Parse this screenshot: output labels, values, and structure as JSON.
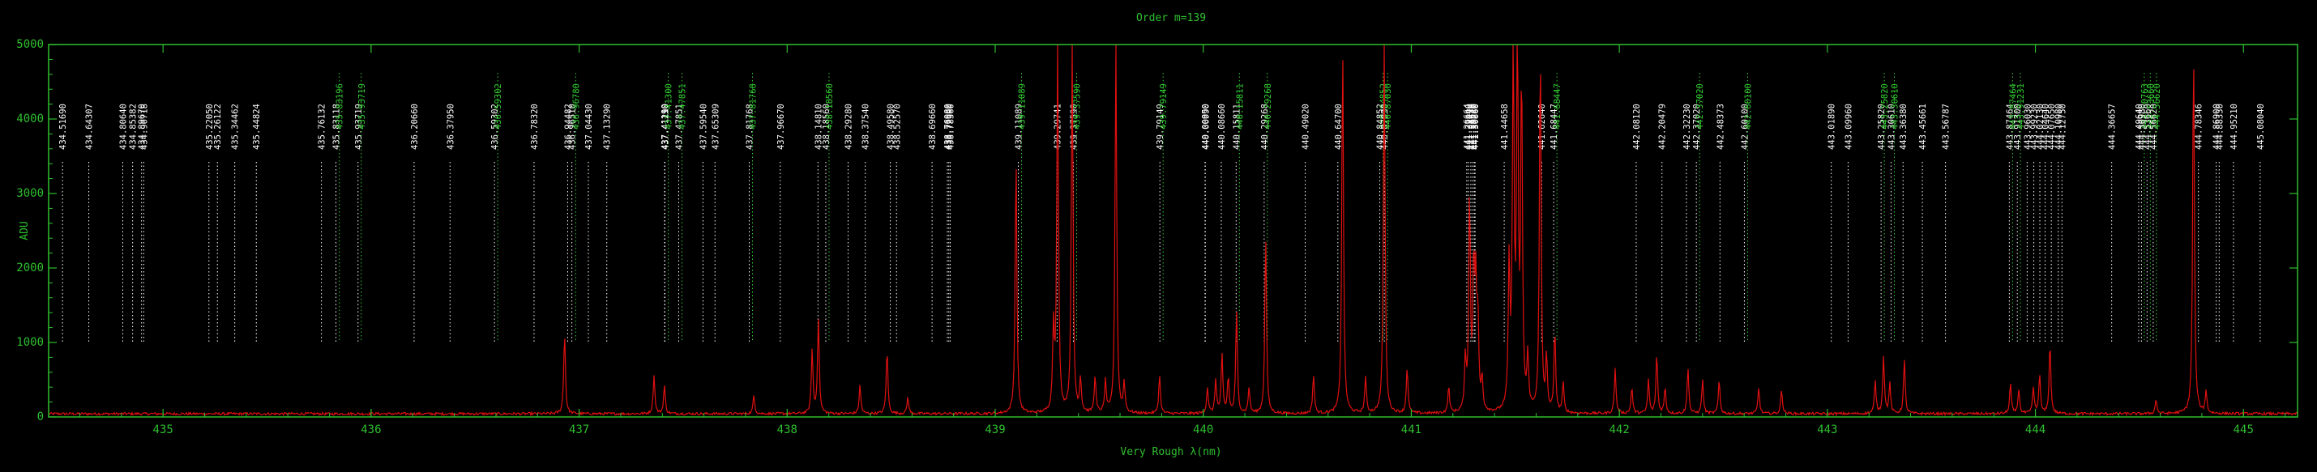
{
  "chart_data": {
    "type": "line",
    "title": "Order m=139",
    "xlabel": "Very Rough λ(nm)",
    "ylabel": "ADU",
    "xlim": [
      434.45,
      445.26
    ],
    "ylim": [
      0,
      5000
    ],
    "x_ticks": [
      435,
      436,
      437,
      438,
      439,
      440,
      441,
      442,
      443,
      444,
      445
    ],
    "y_ticks": [
      0,
      1000,
      2000,
      3000,
      4000,
      5000
    ],
    "grid": false,
    "colors": {
      "background": "#000000",
      "axes": "#2fbf2f",
      "spectrum": "#e01010",
      "line_white": "#ffffff",
      "line_green": "#33cc33"
    },
    "series": [
      {
        "color": "#e01010",
        "baseline": 25,
        "peaks": [
          [
            436.93,
            1100
          ],
          [
            437.36,
            520
          ],
          [
            437.41,
            380
          ],
          [
            437.84,
            250
          ],
          [
            438.12,
            850
          ],
          [
            438.15,
            1290
          ],
          [
            438.35,
            380
          ],
          [
            438.48,
            870
          ],
          [
            438.58,
            220
          ],
          [
            439.1,
            3480
          ],
          [
            439.28,
            1100
          ],
          [
            439.3,
            5000
          ],
          [
            439.37,
            5000
          ],
          [
            439.41,
            450
          ],
          [
            439.48,
            500
          ],
          [
            439.53,
            420
          ],
          [
            439.58,
            5000
          ],
          [
            439.62,
            400
          ],
          [
            439.79,
            520
          ],
          [
            440.02,
            350
          ],
          [
            440.06,
            450
          ],
          [
            440.09,
            780
          ],
          [
            440.12,
            480
          ],
          [
            440.16,
            1380
          ],
          [
            440.22,
            350
          ],
          [
            440.3,
            2420
          ],
          [
            440.53,
            520
          ],
          [
            440.67,
            5000
          ],
          [
            440.78,
            480
          ],
          [
            440.87,
            5000
          ],
          [
            440.98,
            620
          ],
          [
            441.18,
            350
          ],
          [
            441.26,
            680
          ],
          [
            441.28,
            2880
          ],
          [
            441.3,
            1900
          ],
          [
            441.31,
            1500
          ],
          [
            441.32,
            1200
          ],
          [
            441.34,
            420
          ],
          [
            441.47,
            1900
          ],
          [
            441.49,
            5000
          ],
          [
            441.51,
            5000
          ],
          [
            441.53,
            4500
          ],
          [
            441.56,
            700
          ],
          [
            441.62,
            5000
          ],
          [
            441.65,
            700
          ],
          [
            441.69,
            1100
          ],
          [
            441.73,
            400
          ],
          [
            441.98,
            600
          ],
          [
            442.06,
            350
          ],
          [
            442.14,
            450
          ],
          [
            442.18,
            800
          ],
          [
            442.22,
            350
          ],
          [
            442.33,
            620
          ],
          [
            442.4,
            450
          ],
          [
            442.48,
            450
          ],
          [
            442.67,
            350
          ],
          [
            442.78,
            330
          ],
          [
            443.23,
            430
          ],
          [
            443.27,
            780
          ],
          [
            443.3,
            400
          ],
          [
            443.37,
            720
          ],
          [
            443.88,
            400
          ],
          [
            443.92,
            330
          ],
          [
            443.99,
            350
          ],
          [
            444.02,
            520
          ],
          [
            444.07,
            950
          ],
          [
            444.58,
            200
          ],
          [
            444.76,
            5000
          ],
          [
            444.82,
            300
          ]
        ]
      }
    ],
    "line_ids": [
      {
        "x": 434.5169,
        "label": "434.51690",
        "color": "white"
      },
      {
        "x": 434.6431,
        "label": "434.64307",
        "color": "white"
      },
      {
        "x": 434.8064,
        "label": "434.80640",
        "color": "white"
      },
      {
        "x": 434.8538,
        "label": "434.85382",
        "color": "white"
      },
      {
        "x": 434.8967,
        "label": "434.89670",
        "color": "white"
      },
      {
        "x": 434.9072,
        "label": "434.90718",
        "color": "white"
      },
      {
        "x": 435.2205,
        "label": "435.22050",
        "color": "white"
      },
      {
        "x": 435.2612,
        "label": "435.26122",
        "color": "white"
      },
      {
        "x": 435.3446,
        "label": "435.34462",
        "color": "white"
      },
      {
        "x": 435.4482,
        "label": "435.44824",
        "color": "white"
      },
      {
        "x": 435.7613,
        "label": "435.76132",
        "color": "white"
      },
      {
        "x": 435.8311,
        "label": "435.83118",
        "color": "white"
      },
      {
        "x": 435.8319,
        "label": "435.83196",
        "color": "green"
      },
      {
        "x": 435.9372,
        "label": "435.93719",
        "color": "white"
      },
      {
        "x": 435.9372,
        "label": "435.93719",
        "color": "green"
      },
      {
        "x": 436.2066,
        "label": "436.20660",
        "color": "white"
      },
      {
        "x": 436.3795,
        "label": "436.37950",
        "color": "white"
      },
      {
        "x": 436.593,
        "label": "436.59302",
        "color": "white"
      },
      {
        "x": 436.593,
        "label": "436.59302",
        "color": "green"
      },
      {
        "x": 436.7832,
        "label": "436.78320",
        "color": "white"
      },
      {
        "x": 436.9448,
        "label": "436.94482",
        "color": "white"
      },
      {
        "x": 436.9651,
        "label": "436.96510",
        "color": "white"
      },
      {
        "x": 436.9678,
        "label": "436.96780",
        "color": "green"
      },
      {
        "x": 437.0443,
        "label": "437.04430",
        "color": "white"
      },
      {
        "x": 437.1329,
        "label": "437.13290",
        "color": "white"
      },
      {
        "x": 437.4111,
        "label": "437.41110",
        "color": "white"
      },
      {
        "x": 437.4119,
        "label": "437.41190",
        "color": "white"
      },
      {
        "x": 437.4125,
        "label": "437.41250",
        "color": "white"
      },
      {
        "x": 437.413,
        "label": "437.41300",
        "color": "green"
      },
      {
        "x": 437.4785,
        "label": "437.47851",
        "color": "white"
      },
      {
        "x": 437.4785,
        "label": "437.47851",
        "color": "green"
      },
      {
        "x": 437.5954,
        "label": "437.59540",
        "color": "white"
      },
      {
        "x": 437.6531,
        "label": "437.65309",
        "color": "white"
      },
      {
        "x": 437.8177,
        "label": "437.81768",
        "color": "white"
      },
      {
        "x": 437.8177,
        "label": "437.81768",
        "color": "green"
      },
      {
        "x": 437.9667,
        "label": "437.96670",
        "color": "white"
      },
      {
        "x": 438.1481,
        "label": "438.14810",
        "color": "white"
      },
      {
        "x": 438.1856,
        "label": "438.18560",
        "color": "white"
      },
      {
        "x": 438.1856,
        "label": "438.18560",
        "color": "green"
      },
      {
        "x": 438.2928,
        "label": "438.29280",
        "color": "white"
      },
      {
        "x": 438.3754,
        "label": "438.37540",
        "color": "white"
      },
      {
        "x": 438.4958,
        "label": "438.49580",
        "color": "white"
      },
      {
        "x": 438.5257,
        "label": "438.52570",
        "color": "white"
      },
      {
        "x": 438.6966,
        "label": "438.69660",
        "color": "white"
      },
      {
        "x": 438.7698,
        "label": "438.76980",
        "color": "white"
      },
      {
        "x": 438.7769,
        "label": "438.77690",
        "color": "white"
      },
      {
        "x": 438.7836,
        "label": "438.78360",
        "color": "white"
      },
      {
        "x": 439.1109,
        "label": "439.11089",
        "color": "white"
      },
      {
        "x": 439.1109,
        "label": "439.11089",
        "color": "green"
      },
      {
        "x": 439.2974,
        "label": "439.29741",
        "color": "white"
      },
      {
        "x": 439.3759,
        "label": "439.37590",
        "color": "white"
      },
      {
        "x": 439.3759,
        "label": "439.37590",
        "color": "green"
      },
      {
        "x": 439.7915,
        "label": "439.79149",
        "color": "white"
      },
      {
        "x": 439.7915,
        "label": "439.79149",
        "color": "green"
      },
      {
        "x": 440.0085,
        "label": "440.00850",
        "color": "white"
      },
      {
        "x": 440.0099,
        "label": "440.00990",
        "color": "white"
      },
      {
        "x": 440.0866,
        "label": "440.08660",
        "color": "white"
      },
      {
        "x": 440.1581,
        "label": "440.15811",
        "color": "white"
      },
      {
        "x": 440.1581,
        "label": "440.15811",
        "color": "green"
      },
      {
        "x": 440.2927,
        "label": "440.29268",
        "color": "white"
      },
      {
        "x": 440.2927,
        "label": "440.29268",
        "color": "green"
      },
      {
        "x": 440.4902,
        "label": "440.49020",
        "color": "white"
      },
      {
        "x": 440.647,
        "label": "440.64700",
        "color": "white"
      },
      {
        "x": 440.8485,
        "label": "440.84852",
        "color": "white"
      },
      {
        "x": 440.8485,
        "label": "440.84852",
        "color": "green"
      },
      {
        "x": 440.8703,
        "label": "440.87030",
        "color": "white"
      },
      {
        "x": 440.8703,
        "label": "440.87030",
        "color": "green"
      },
      {
        "x": 441.2666,
        "label": "441.26664",
        "color": "white"
      },
      {
        "x": 441.2744,
        "label": "441.27440",
        "color": "white"
      },
      {
        "x": 441.2863,
        "label": "441.28630",
        "color": "white"
      },
      {
        "x": 441.2952,
        "label": "441.29520",
        "color": "white"
      },
      {
        "x": 441.3028,
        "label": "441.30280",
        "color": "white"
      },
      {
        "x": 441.3066,
        "label": "441.30660",
        "color": "white"
      },
      {
        "x": 441.4466,
        "label": "441.44658",
        "color": "white"
      },
      {
        "x": 441.6264,
        "label": "441.62640",
        "color": "white"
      },
      {
        "x": 441.6845,
        "label": "441.68447",
        "color": "white"
      },
      {
        "x": 441.6845,
        "label": "441.68447",
        "color": "green"
      },
      {
        "x": 442.0812,
        "label": "442.08120",
        "color": "white"
      },
      {
        "x": 442.2048,
        "label": "442.20479",
        "color": "white"
      },
      {
        "x": 442.3223,
        "label": "442.32230",
        "color": "white"
      },
      {
        "x": 442.3702,
        "label": "442.37020",
        "color": "white"
      },
      {
        "x": 442.3702,
        "label": "442.37020",
        "color": "green"
      },
      {
        "x": 442.4837,
        "label": "442.48373",
        "color": "white"
      },
      {
        "x": 442.601,
        "label": "442.60100",
        "color": "white"
      },
      {
        "x": 442.601,
        "label": "442.60100",
        "color": "green"
      },
      {
        "x": 443.0189,
        "label": "443.01890",
        "color": "white"
      },
      {
        "x": 443.0996,
        "label": "443.09960",
        "color": "white"
      },
      {
        "x": 443.2582,
        "label": "443.25820",
        "color": "white"
      },
      {
        "x": 443.2582,
        "label": "443.25820",
        "color": "green"
      },
      {
        "x": 443.3061,
        "label": "443.30610",
        "color": "white"
      },
      {
        "x": 443.3061,
        "label": "443.30610",
        "color": "green"
      },
      {
        "x": 443.3638,
        "label": "443.36380",
        "color": "white"
      },
      {
        "x": 443.4566,
        "label": "443.45661",
        "color": "white"
      },
      {
        "x": 443.5679,
        "label": "443.56787",
        "color": "white"
      },
      {
        "x": 443.8746,
        "label": "443.87464",
        "color": "white"
      },
      {
        "x": 443.8746,
        "label": "443.87464",
        "color": "green"
      },
      {
        "x": 443.913,
        "label": "443.91300",
        "color": "white"
      },
      {
        "x": 443.9123,
        "label": "443.91231",
        "color": "green"
      },
      {
        "x": 443.9603,
        "label": "443.96030",
        "color": "white"
      },
      {
        "x": 443.9923,
        "label": "443.99230",
        "color": "white"
      },
      {
        "x": 444.0213,
        "label": "444.02130",
        "color": "white"
      },
      {
        "x": 444.0464,
        "label": "444.04640",
        "color": "white"
      },
      {
        "x": 444.0765,
        "label": "444.07650",
        "color": "white"
      },
      {
        "x": 444.1098,
        "label": "444.10980",
        "color": "white"
      },
      {
        "x": 444.1275,
        "label": "444.12750",
        "color": "white"
      },
      {
        "x": 444.3666,
        "label": "444.36657",
        "color": "white"
      },
      {
        "x": 444.4964,
        "label": "444.49640",
        "color": "white"
      },
      {
        "x": 444.5076,
        "label": "444.50763",
        "color": "green"
      },
      {
        "x": 444.5098,
        "label": "444.50980",
        "color": "white"
      },
      {
        "x": 444.5366,
        "label": "444.53660",
        "color": "white"
      },
      {
        "x": 444.5366,
        "label": "444.53660",
        "color": "green"
      },
      {
        "x": 444.5662,
        "label": "444.56620",
        "color": "white"
      },
      {
        "x": 444.5662,
        "label": "444.56620",
        "color": "green"
      },
      {
        "x": 444.7835,
        "label": "444.78346",
        "color": "white"
      },
      {
        "x": 444.869,
        "label": "444.86900",
        "color": "white"
      },
      {
        "x": 444.8833,
        "label": "444.88330",
        "color": "white"
      },
      {
        "x": 444.9521,
        "label": "444.95210",
        "color": "white"
      },
      {
        "x": 445.0804,
        "label": "445.08040",
        "color": "white"
      }
    ]
  }
}
